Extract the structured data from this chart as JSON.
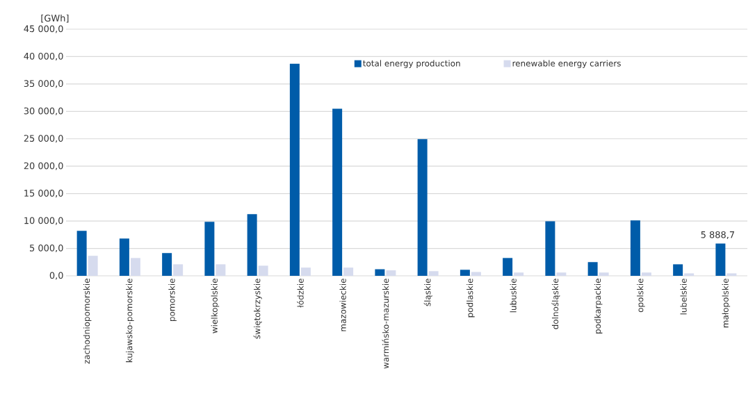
{
  "chart_data": {
    "type": "bar",
    "ylabel": "[GWh]",
    "categories": [
      "zachodniopomorskie",
      "kujawsko-pomorskie",
      "pomorskie",
      "wielkopolskie",
      "świętokrzyskie",
      "łódzkie",
      "mazowieckie",
      "warmińsko-mazurskie",
      "śląskie",
      "podlaskie",
      "lubuskie",
      "dolnośląskie",
      "podkarpackie",
      "opolskie",
      "lubelskie",
      "małopolskie"
    ],
    "series": [
      {
        "name": "total energy production",
        "color": "#005ca9",
        "values": [
          8200,
          6800,
          4150,
          9850,
          11250,
          38700,
          30500,
          1200,
          24950,
          1100,
          3250,
          9950,
          2500,
          10100,
          2100,
          5888.7
        ],
        "value_labels": [
          null,
          null,
          null,
          null,
          null,
          null,
          null,
          null,
          null,
          null,
          null,
          null,
          null,
          null,
          null,
          "5 888,7"
        ]
      },
      {
        "name": "renewable energy carriers",
        "color": "#d6dbee",
        "values": [
          3650,
          3250,
          2100,
          2100,
          1850,
          1500,
          1500,
          1000,
          850,
          700,
          600,
          600,
          600,
          600,
          450,
          450
        ]
      }
    ],
    "ylim": [
      0,
      45000
    ],
    "yticks": [
      {
        "value": 0,
        "label": "0,0"
      },
      {
        "value": 5000,
        "label": "5 000,0"
      },
      {
        "value": 10000,
        "label": "10 000,0"
      },
      {
        "value": 15000,
        "label": "15 000,0"
      },
      {
        "value": 20000,
        "label": "20 000,0"
      },
      {
        "value": 25000,
        "label": "25 000,0"
      },
      {
        "value": 30000,
        "label": "30 000,0"
      },
      {
        "value": 35000,
        "label": "35 000,0"
      },
      {
        "value": 40000,
        "label": "40 000,0"
      },
      {
        "value": 45000,
        "label": "45 000,0"
      }
    ],
    "grid": "y",
    "legend": "top right"
  }
}
